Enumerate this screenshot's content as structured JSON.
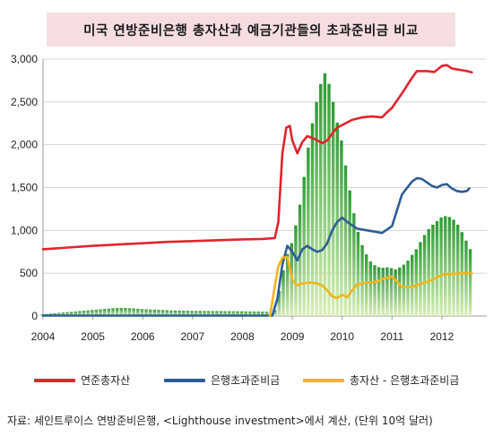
{
  "title": "미국 연방준비은행 총자산과 예금기관들의 초과준비금 비교",
  "source": "자료: 세인트루이스 연방준비은행, <Lighthouse investment>에서 계산, (단위 10억 달러)",
  "legend": [
    {
      "label": "연준총자산",
      "color": "#e0252b"
    },
    {
      "label": "은행초과준비금",
      "color": "#2f5d95"
    },
    {
      "label": "총자산 - 은행초과준비금",
      "color": "#f2b51d"
    }
  ],
  "chart_data": {
    "type": "line",
    "x_ticks": [
      "2004",
      "2005",
      "2006",
      "2007",
      "2008",
      "2009",
      "2010",
      "2011",
      "2012"
    ],
    "y_ticks": [
      "0",
      "500",
      "1,000",
      "1,500",
      "2,000",
      "2,500",
      "3,000"
    ],
    "ylim": [
      0,
      3000
    ],
    "xlim": [
      2004,
      2012.9
    ],
    "grid": "horizontal",
    "legend_placement": "bottom",
    "series": [
      {
        "name": "연준총자산",
        "color": "#e0252b",
        "points": [
          [
            2004.0,
            780
          ],
          [
            2004.5,
            800
          ],
          [
            2005.0,
            820
          ],
          [
            2005.5,
            835
          ],
          [
            2006.0,
            850
          ],
          [
            2006.5,
            865
          ],
          [
            2007.0,
            875
          ],
          [
            2007.5,
            885
          ],
          [
            2008.0,
            895
          ],
          [
            2008.4,
            900
          ],
          [
            2008.65,
            910
          ],
          [
            2008.72,
            1100
          ],
          [
            2008.8,
            1900
          ],
          [
            2008.88,
            2200
          ],
          [
            2008.95,
            2220
          ],
          [
            2009.0,
            2050
          ],
          [
            2009.1,
            1900
          ],
          [
            2009.2,
            2030
          ],
          [
            2009.3,
            2100
          ],
          [
            2009.4,
            2080
          ],
          [
            2009.5,
            2050
          ],
          [
            2009.6,
            2020
          ],
          [
            2009.7,
            2050
          ],
          [
            2009.8,
            2130
          ],
          [
            2009.9,
            2200
          ],
          [
            2010.0,
            2230
          ],
          [
            2010.2,
            2290
          ],
          [
            2010.4,
            2320
          ],
          [
            2010.6,
            2330
          ],
          [
            2010.8,
            2320
          ],
          [
            2010.9,
            2380
          ],
          [
            2011.0,
            2430
          ],
          [
            2011.2,
            2600
          ],
          [
            2011.4,
            2780
          ],
          [
            2011.5,
            2860
          ],
          [
            2011.7,
            2860
          ],
          [
            2011.85,
            2850
          ],
          [
            2012.0,
            2920
          ],
          [
            2012.1,
            2930
          ],
          [
            2012.2,
            2890
          ],
          [
            2012.4,
            2870
          ],
          [
            2012.5,
            2860
          ],
          [
            2012.6,
            2845
          ]
        ]
      },
      {
        "name": "은행초과준비금",
        "color": "#2f5d95",
        "points": [
          [
            2004.0,
            5
          ],
          [
            2008.0,
            5
          ],
          [
            2008.6,
            5
          ],
          [
            2008.7,
            200
          ],
          [
            2008.8,
            600
          ],
          [
            2008.9,
            820
          ],
          [
            2009.0,
            750
          ],
          [
            2009.1,
            650
          ],
          [
            2009.2,
            780
          ],
          [
            2009.3,
            820
          ],
          [
            2009.4,
            780
          ],
          [
            2009.5,
            750
          ],
          [
            2009.6,
            770
          ],
          [
            2009.7,
            850
          ],
          [
            2009.8,
            1000
          ],
          [
            2009.9,
            1100
          ],
          [
            2010.0,
            1150
          ],
          [
            2010.1,
            1100
          ],
          [
            2010.3,
            1020
          ],
          [
            2010.5,
            1000
          ],
          [
            2010.7,
            980
          ],
          [
            2010.8,
            970
          ],
          [
            2011.0,
            1050
          ],
          [
            2011.2,
            1420
          ],
          [
            2011.4,
            1570
          ],
          [
            2011.5,
            1610
          ],
          [
            2011.6,
            1600
          ],
          [
            2011.8,
            1520
          ],
          [
            2011.9,
            1500
          ],
          [
            2012.0,
            1530
          ],
          [
            2012.1,
            1540
          ],
          [
            2012.2,
            1490
          ],
          [
            2012.3,
            1460
          ],
          [
            2012.4,
            1450
          ],
          [
            2012.5,
            1460
          ],
          [
            2012.55,
            1490
          ]
        ]
      },
      {
        "name": "총자산 - 은행초과준비금",
        "color": "#f2b51d",
        "points": [
          [
            2008.55,
            0
          ],
          [
            2008.65,
            350
          ],
          [
            2008.72,
            580
          ],
          [
            2008.8,
            680
          ],
          [
            2008.9,
            690
          ],
          [
            2009.0,
            420
          ],
          [
            2009.1,
            360
          ],
          [
            2009.2,
            380
          ],
          [
            2009.3,
            390
          ],
          [
            2009.4,
            390
          ],
          [
            2009.5,
            380
          ],
          [
            2009.6,
            360
          ],
          [
            2009.7,
            300
          ],
          [
            2009.8,
            230
          ],
          [
            2009.9,
            210
          ],
          [
            2010.0,
            250
          ],
          [
            2010.1,
            220
          ],
          [
            2010.2,
            300
          ],
          [
            2010.3,
            370
          ],
          [
            2010.5,
            390
          ],
          [
            2010.7,
            400
          ],
          [
            2010.8,
            430
          ],
          [
            2011.0,
            460
          ],
          [
            2011.1,
            400
          ],
          [
            2011.2,
            340
          ],
          [
            2011.4,
            340
          ],
          [
            2011.6,
            380
          ],
          [
            2011.8,
            420
          ],
          [
            2012.0,
            480
          ],
          [
            2012.1,
            490
          ],
          [
            2012.2,
            490
          ],
          [
            2012.4,
            500
          ],
          [
            2012.6,
            500
          ]
        ]
      },
      {
        "name": "",
        "type": "bar",
        "color": "#2e9a35",
        "points": [
          [
            2004.0,
            20
          ],
          [
            2004.2,
            30
          ],
          [
            2004.4,
            40
          ],
          [
            2004.6,
            50
          ],
          [
            2004.8,
            60
          ],
          [
            2005.0,
            70
          ],
          [
            2005.2,
            80
          ],
          [
            2005.4,
            90
          ],
          [
            2005.6,
            95
          ],
          [
            2005.8,
            90
          ],
          [
            2006.0,
            80
          ],
          [
            2006.2,
            75
          ],
          [
            2006.4,
            70
          ],
          [
            2006.6,
            65
          ],
          [
            2006.8,
            62
          ],
          [
            2007.0,
            60
          ],
          [
            2007.5,
            58
          ],
          [
            2008.0,
            55
          ],
          [
            2008.5,
            50
          ],
          [
            2008.6,
            10
          ],
          [
            2008.65,
            30
          ],
          [
            2008.72,
            200
          ],
          [
            2008.8,
            450
          ],
          [
            2008.9,
            700
          ],
          [
            2009.0,
            850
          ],
          [
            2009.1,
            1100
          ],
          [
            2009.2,
            1400
          ],
          [
            2009.3,
            1850
          ],
          [
            2009.4,
            2200
          ],
          [
            2009.5,
            2500
          ],
          [
            2009.6,
            2750
          ],
          [
            2009.65,
            2840
          ],
          [
            2009.7,
            2820
          ],
          [
            2009.8,
            2600
          ],
          [
            2009.9,
            2300
          ],
          [
            2010.0,
            2050
          ],
          [
            2010.1,
            1700
          ],
          [
            2010.2,
            1350
          ],
          [
            2010.3,
            1050
          ],
          [
            2010.4,
            850
          ],
          [
            2010.5,
            720
          ],
          [
            2010.6,
            620
          ],
          [
            2010.7,
            580
          ],
          [
            2010.8,
            560
          ],
          [
            2010.9,
            570
          ],
          [
            2011.0,
            560
          ],
          [
            2011.1,
            540
          ],
          [
            2011.2,
            580
          ],
          [
            2011.3,
            620
          ],
          [
            2011.4,
            700
          ],
          [
            2011.5,
            780
          ],
          [
            2011.6,
            880
          ],
          [
            2011.7,
            980
          ],
          [
            2011.8,
            1050
          ],
          [
            2011.9,
            1100
          ],
          [
            2012.0,
            1150
          ],
          [
            2012.1,
            1170
          ],
          [
            2012.2,
            1150
          ],
          [
            2012.3,
            1100
          ],
          [
            2012.4,
            1000
          ],
          [
            2012.5,
            880
          ],
          [
            2012.6,
            760
          ]
        ]
      }
    ]
  }
}
